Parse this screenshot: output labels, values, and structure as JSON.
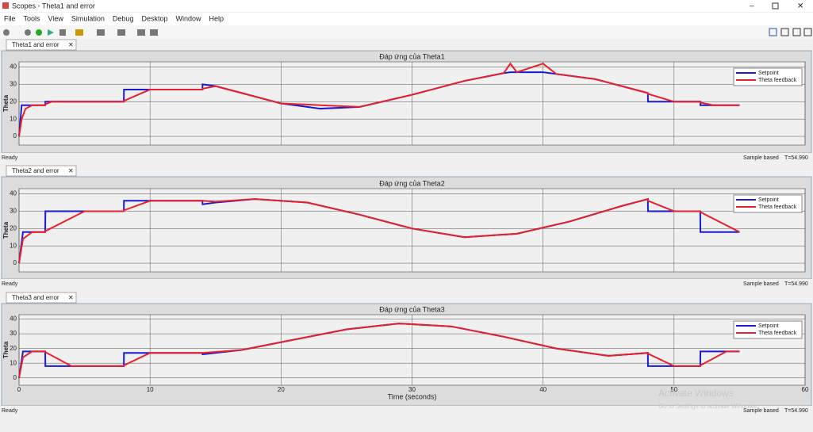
{
  "window": {
    "title": "Scopes - Theta1 and error",
    "menu": [
      "File",
      "Tools",
      "View",
      "Simulation",
      "Debug",
      "Desktop",
      "Window",
      "Help"
    ],
    "tabs": [
      "Theta1 and error",
      "Theta2 and error",
      "Theta3 and error"
    ],
    "status": [
      {
        "state": "Ready",
        "mode": "Sample based",
        "time": "T=54.990"
      },
      {
        "state": "Ready",
        "mode": "Sample based",
        "time": "T=54.990"
      },
      {
        "state": "Ready",
        "mode": "Sample based",
        "time": "T=54.990"
      }
    ],
    "watermark": {
      "title": "Activate Windows",
      "text": "Go to Settings to activate Windows."
    }
  },
  "chart_data": [
    {
      "type": "line",
      "title": "Đáp ứng của Theta1",
      "ylabel": "Theta",
      "xtick_labels": false,
      "xlim": [
        0,
        60
      ],
      "xticks": [
        0,
        10,
        20,
        30,
        40,
        50,
        60
      ],
      "ylim": [
        -5,
        43
      ],
      "yticks": [
        0,
        10,
        20,
        30,
        40
      ],
      "grid": true,
      "legend": "upper right",
      "x": [
        0,
        0.2,
        0.5,
        1,
        2,
        2.01,
        2.5,
        8,
        8.01,
        10,
        14,
        14.01,
        15,
        17,
        20,
        23,
        26,
        30,
        34,
        37,
        37.5,
        38,
        40,
        41,
        44,
        47,
        48,
        48.01,
        50,
        52,
        52.01,
        53,
        55
      ],
      "series": [
        {
          "name": "Setpoint",
          "color": "#1a1ad6",
          "values": [
            0,
            18,
            18,
            18,
            18,
            20,
            20,
            20,
            27,
            27,
            27,
            30,
            29,
            25,
            19,
            16,
            17,
            24,
            32,
            36.5,
            37,
            37,
            37,
            36,
            33,
            27,
            25,
            20,
            20,
            20,
            18,
            18,
            18
          ]
        },
        {
          "name": "Theta feedback",
          "color": "#e8202a",
          "values": [
            0,
            10,
            16,
            18,
            18,
            18.5,
            20,
            20,
            20.5,
            27,
            27,
            27.5,
            29,
            25,
            19,
            18,
            17,
            24,
            32,
            36.5,
            42,
            37,
            42,
            36,
            33,
            27,
            25,
            24.5,
            20,
            20,
            19.5,
            18,
            18
          ]
        }
      ]
    },
    {
      "type": "line",
      "title": "Đáp ứng của Theta2",
      "ylabel": "Theta",
      "xtick_labels": false,
      "xlim": [
        0,
        60
      ],
      "xticks": [
        0,
        10,
        20,
        30,
        40,
        50,
        60
      ],
      "ylim": [
        -5,
        43
      ],
      "yticks": [
        0,
        10,
        20,
        30,
        40
      ],
      "grid": true,
      "legend": "upper right",
      "x": [
        0,
        0.3,
        1,
        2,
        2.01,
        5,
        8,
        8.01,
        10,
        14,
        14.01,
        15,
        18,
        22,
        26,
        30,
        34,
        38,
        42,
        46,
        48,
        48.01,
        50,
        52,
        52.01,
        55
      ],
      "series": [
        {
          "name": "Setpoint",
          "color": "#1a1ad6",
          "values": [
            0,
            18,
            18,
            18,
            30,
            30,
            30,
            36,
            36,
            36,
            34,
            35,
            37,
            35,
            28,
            20,
            15,
            17,
            24,
            33,
            37,
            30,
            30,
            30,
            18,
            18
          ]
        },
        {
          "name": "Theta feedback",
          "color": "#e8202a",
          "values": [
            0,
            14,
            18,
            18,
            18.5,
            30,
            30,
            30.5,
            36,
            36,
            36,
            35.5,
            37,
            35,
            28,
            20,
            15,
            17,
            24,
            33,
            37,
            36,
            30,
            30,
            29.5,
            18
          ]
        }
      ]
    },
    {
      "type": "line",
      "title": "Đáp ứng của Theta3",
      "ylabel": "Theta",
      "xlabel": "Time (seconds)",
      "xtick_labels": true,
      "xlim": [
        0,
        60
      ],
      "xticks": [
        0,
        10,
        20,
        30,
        40,
        50,
        60
      ],
      "ylim": [
        -5,
        43
      ],
      "yticks": [
        0,
        10,
        20,
        30,
        40
      ],
      "grid": true,
      "legend": "upper right",
      "x": [
        0,
        0.3,
        1,
        2,
        2.01,
        4,
        8,
        8.01,
        10,
        14,
        14.01,
        17,
        21,
        25,
        29,
        33,
        37,
        41,
        45,
        48,
        48.01,
        50,
        52,
        52.01,
        54,
        55
      ],
      "series": [
        {
          "name": "Setpoint",
          "color": "#1a1ad6",
          "values": [
            0,
            18,
            18,
            18,
            8,
            8,
            8,
            17,
            17,
            17,
            16,
            19,
            26,
            33,
            37,
            35,
            28,
            20,
            15,
            17,
            8,
            8,
            8,
            18,
            18,
            18
          ]
        },
        {
          "name": "Theta feedback",
          "color": "#e8202a",
          "values": [
            0,
            14,
            18,
            18,
            17.5,
            8,
            8,
            8.5,
            17,
            17,
            17,
            19,
            26,
            33,
            37,
            35,
            28,
            20,
            15,
            17,
            16.5,
            8,
            8,
            8.5,
            18,
            18
          ]
        }
      ]
    }
  ]
}
